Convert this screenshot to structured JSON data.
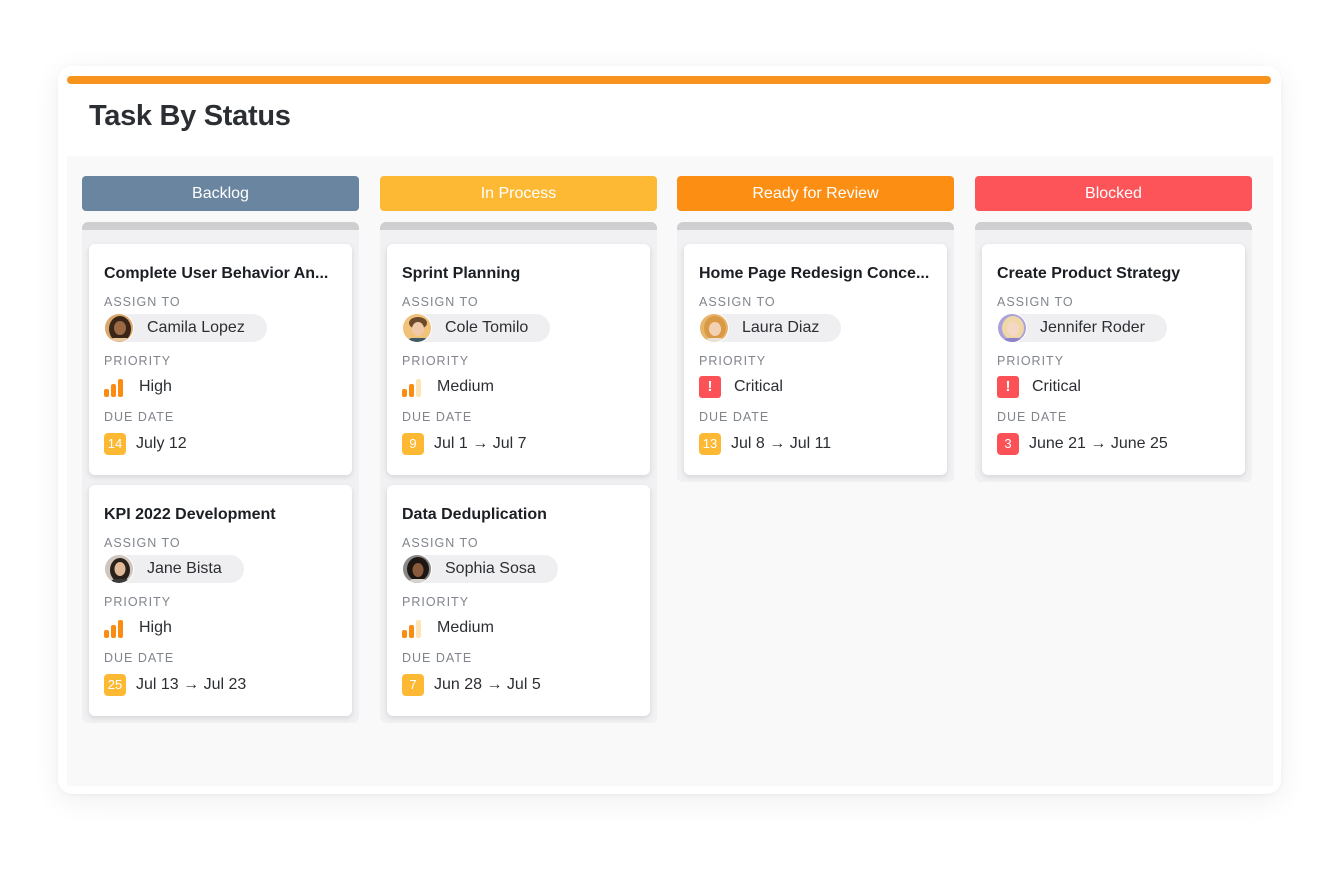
{
  "title": "Task By Status",
  "colors": {
    "accent": "#f7941d",
    "backlog": "#6a859f",
    "in_process": "#fdb934",
    "ready_for_review": "#fc8e13",
    "blocked": "#fd5459",
    "priority_bar_on": "#fb8c12",
    "priority_bar_off": "#fde4b5",
    "critical": "#fc5156",
    "due_badge_default": "#fdb934",
    "due_badge_overdue": "#fc5156"
  },
  "labels": {
    "assign_to": "ASSIGN TO",
    "priority": "PRIORITY",
    "due_date": "DUE DATE"
  },
  "columns": [
    {
      "name": "Backlog",
      "cards": [
        {
          "title": "Complete User Behavior An...",
          "assignee": "Camila Lopez",
          "priority": "High",
          "priority_level": 3,
          "due_badge": "14",
          "due_text": "July 12"
        },
        {
          "title": "KPI 2022 Development",
          "assignee": "Jane Bista",
          "priority": "High",
          "priority_level": 3,
          "due_badge": "25",
          "due_text": "Jul 13 → Jul 23"
        }
      ]
    },
    {
      "name": "In Process",
      "cards": [
        {
          "title": "Sprint Planning",
          "assignee": "Cole Tomilo",
          "priority": "Medium",
          "priority_level": 2,
          "due_badge": "9",
          "due_text": "Jul 1 → Jul 7"
        },
        {
          "title": "Data Deduplication",
          "assignee": "Sophia Sosa",
          "priority": "Medium",
          "priority_level": 2,
          "due_badge": "7",
          "due_text": "Jun 28 → Jul 5"
        }
      ]
    },
    {
      "name": "Ready for Review",
      "cards": [
        {
          "title": "Home Page Redesign Conce...",
          "assignee": "Laura Diaz",
          "priority": "Critical",
          "priority_level": 4,
          "critical_glyph": "!",
          "due_badge": "13",
          "due_text": "Jul 8 → Jul 11"
        }
      ]
    },
    {
      "name": "Blocked",
      "cards": [
        {
          "title": "Create Product Strategy",
          "assignee": "Jennifer Roder",
          "priority": "Critical",
          "priority_level": 4,
          "critical_glyph": "!",
          "due_badge": "3",
          "due_text": "June 21 → June 25"
        }
      ]
    }
  ]
}
